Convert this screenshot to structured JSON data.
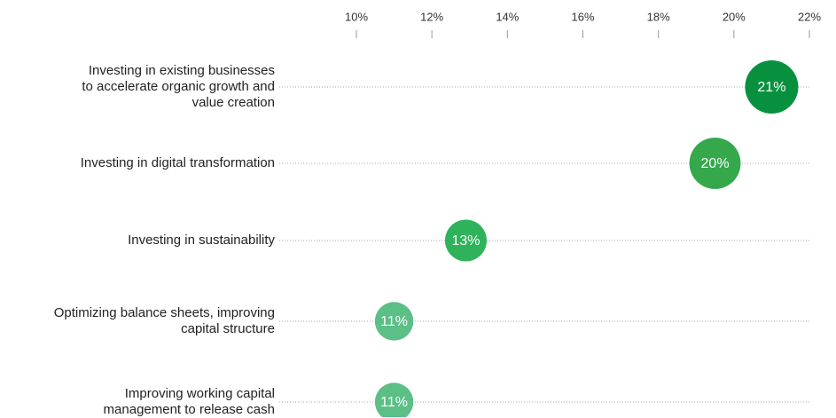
{
  "chart_data": {
    "type": "dot",
    "categories": [
      "Investing in existing businesses\nto accelerate organic growth and\nvalue creation",
      "Investing in digital transformation",
      "Investing in sustainability",
      "Optimizing balance sheets, improving\ncapital structure",
      "Improving working capital\nmanagement to release cash"
    ],
    "values": [
      21,
      19.5,
      12.9,
      11,
      11
    ],
    "value_labels": [
      "21%",
      "20%",
      "13%",
      "11%",
      "11%"
    ],
    "colors": [
      "#07913f",
      "#34a84b",
      "#2eb35a",
      "#5bbf86",
      "#5bbf86"
    ],
    "xlim": [
      10,
      22
    ],
    "xticks": [
      {
        "value": 10,
        "label": "10%"
      },
      {
        "value": 12,
        "label": "12%"
      },
      {
        "value": 14,
        "label": "14%"
      },
      {
        "value": 16,
        "label": "16%"
      },
      {
        "value": 18,
        "label": "18%"
      },
      {
        "value": 20,
        "label": "20%"
      },
      {
        "value": 22,
        "label": "22%"
      }
    ],
    "grid": true
  }
}
